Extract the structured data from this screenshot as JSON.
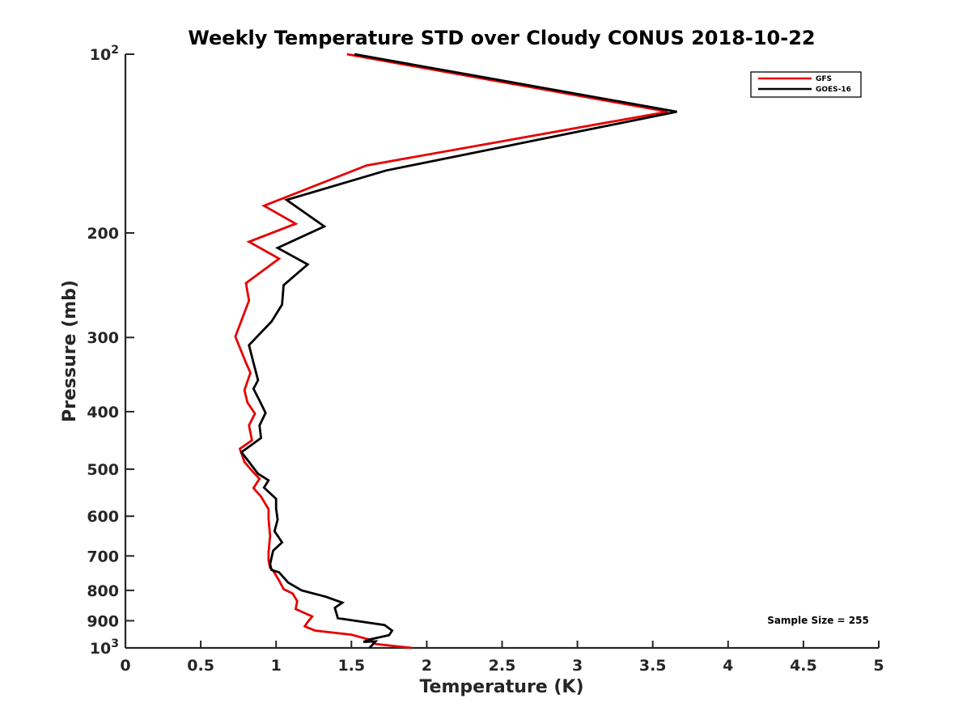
{
  "chart_data": {
    "type": "line",
    "title": "Weekly Temperature STD over Cloudy CONUS 2018-10-22",
    "xlabel": "Temperature (K)",
    "ylabel": "Pressure (mb)",
    "xlim": [
      0,
      5
    ],
    "ylim": [
      100,
      1000
    ],
    "y_scale": "log",
    "y_reversed": true,
    "grid": false,
    "legend_position": "top-right",
    "x_ticks": [
      "0",
      "0.5",
      "1",
      "1.5",
      "2",
      "2.5",
      "3",
      "3.5",
      "4",
      "4.5",
      "5"
    ],
    "y_ticks": [
      {
        "value": 100,
        "base": "10",
        "exp": "2"
      },
      {
        "value": 200,
        "label": "200"
      },
      {
        "value": 300,
        "label": "300"
      },
      {
        "value": 400,
        "label": "400"
      },
      {
        "value": 500,
        "label": "500"
      },
      {
        "value": 600,
        "label": "600"
      },
      {
        "value": 700,
        "label": "700"
      },
      {
        "value": 800,
        "label": "800"
      },
      {
        "value": 900,
        "label": "900"
      },
      {
        "value": 1000,
        "base": "10",
        "exp": "3"
      }
    ],
    "annotation": "Sample Size = 255",
    "series": [
      {
        "name": "GFS",
        "color": "#e60000",
        "points": [
          [
            1.47,
            100
          ],
          [
            3.6,
            125
          ],
          [
            1.6,
            154
          ],
          [
            0.92,
            180
          ],
          [
            1.13,
            193
          ],
          [
            0.82,
            207
          ],
          [
            1.02,
            221
          ],
          [
            0.8,
            243
          ],
          [
            0.82,
            260
          ],
          [
            0.73,
            299
          ],
          [
            0.8,
            331
          ],
          [
            0.83,
            344
          ],
          [
            0.79,
            368
          ],
          [
            0.81,
            386
          ],
          [
            0.86,
            403
          ],
          [
            0.82,
            422
          ],
          [
            0.84,
            447
          ],
          [
            0.76,
            462
          ],
          [
            0.79,
            486
          ],
          [
            0.84,
            503
          ],
          [
            0.89,
            519
          ],
          [
            0.85,
            538
          ],
          [
            0.9,
            556
          ],
          [
            0.95,
            584
          ],
          [
            0.95,
            606
          ],
          [
            0.96,
            648
          ],
          [
            0.95,
            690
          ],
          [
            0.95,
            712
          ],
          [
            0.96,
            733
          ],
          [
            0.98,
            741
          ],
          [
            1.02,
            770
          ],
          [
            1.05,
            796
          ],
          [
            1.11,
            810
          ],
          [
            1.14,
            834
          ],
          [
            1.13,
            860
          ],
          [
            1.24,
            885
          ],
          [
            1.21,
            904
          ],
          [
            1.19,
            920
          ],
          [
            1.26,
            935
          ],
          [
            1.5,
            950
          ],
          [
            1.63,
            970
          ],
          [
            1.66,
            985
          ],
          [
            1.9,
            1000
          ]
        ]
      },
      {
        "name": "GOES-16",
        "color": "#000000",
        "points": [
          [
            1.52,
            100
          ],
          [
            3.66,
            125
          ],
          [
            1.73,
            157
          ],
          [
            1.07,
            176
          ],
          [
            1.32,
            195
          ],
          [
            1.01,
            212
          ],
          [
            1.21,
            226
          ],
          [
            1.05,
            245
          ],
          [
            1.04,
            264
          ],
          [
            0.97,
            282
          ],
          [
            0.82,
            309
          ],
          [
            0.85,
            331
          ],
          [
            0.88,
            354
          ],
          [
            0.85,
            366
          ],
          [
            0.89,
            383
          ],
          [
            0.93,
            402
          ],
          [
            0.89,
            422
          ],
          [
            0.9,
            443
          ],
          [
            0.77,
            468
          ],
          [
            0.82,
            486
          ],
          [
            0.88,
            509
          ],
          [
            0.95,
            522
          ],
          [
            0.92,
            537
          ],
          [
            1.0,
            561
          ],
          [
            1.0,
            582
          ],
          [
            1.01,
            608
          ],
          [
            0.99,
            636
          ],
          [
            1.04,
            664
          ],
          [
            0.98,
            686
          ],
          [
            0.96,
            723
          ],
          [
            0.97,
            739
          ],
          [
            1.02,
            746
          ],
          [
            1.08,
            776
          ],
          [
            1.17,
            800
          ],
          [
            1.33,
            820
          ],
          [
            1.44,
            839
          ],
          [
            1.39,
            856
          ],
          [
            1.41,
            891
          ],
          [
            1.72,
            915
          ],
          [
            1.77,
            935
          ],
          [
            1.75,
            952
          ],
          [
            1.62,
            968
          ],
          [
            1.58,
            977
          ],
          [
            1.66,
            975
          ],
          [
            1.62,
            1000
          ]
        ]
      }
    ]
  }
}
